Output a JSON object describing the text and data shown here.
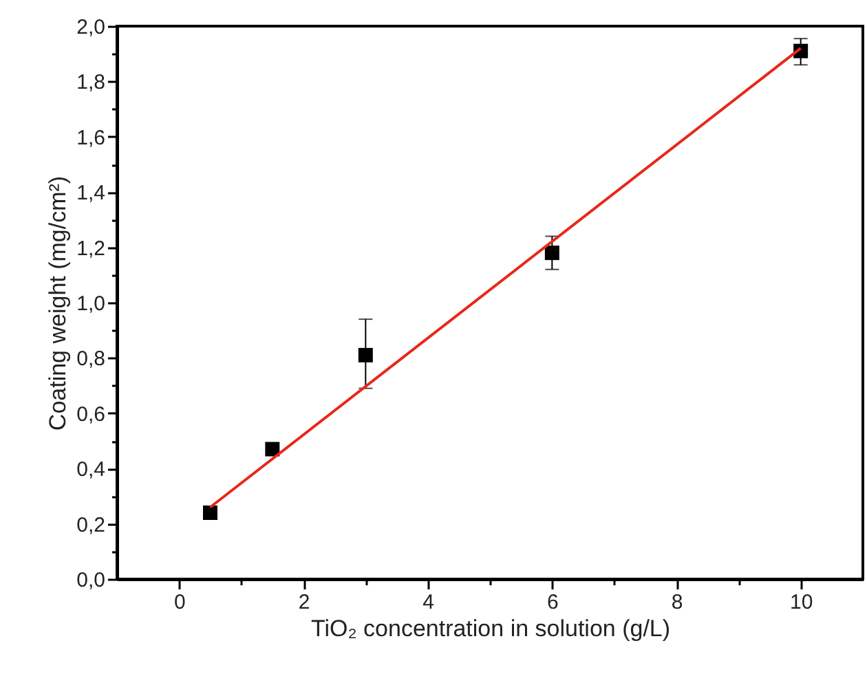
{
  "chart_data": {
    "type": "scatter",
    "xlabel": "TiO₂ concentration in solution (g/L)",
    "ylabel": "Coating weight (mg/cm²)",
    "xlim": [
      -1,
      11
    ],
    "ylim": [
      0,
      2
    ],
    "xticks": [
      0,
      {
        "value": 1,
        "label": null
      },
      2,
      {
        "value": 3,
        "label": null
      },
      4,
      {
        "value": 5,
        "label": null
      },
      6,
      {
        "value": 7,
        "label": null
      },
      8,
      {
        "value": 9,
        "label": null
      },
      10
    ],
    "yticks": [
      {
        "value": 0,
        "label": "0,0"
      },
      {
        "value": 0.1,
        "label": null
      },
      {
        "value": 0.2,
        "label": "0,2"
      },
      {
        "value": 0.3,
        "label": null
      },
      {
        "value": 0.4,
        "label": "0,4"
      },
      {
        "value": 0.5,
        "label": null
      },
      {
        "value": 0.6,
        "label": "0,6"
      },
      {
        "value": 0.7,
        "label": null
      },
      {
        "value": 0.8,
        "label": "0,8"
      },
      {
        "value": 0.9,
        "label": null
      },
      {
        "value": 1.0,
        "label": "1,0"
      },
      {
        "value": 1.1,
        "label": null
      },
      {
        "value": 1.2,
        "label": "1,2"
      },
      {
        "value": 1.3,
        "label": null
      },
      {
        "value": 1.4,
        "label": "1,4"
      },
      {
        "value": 1.5,
        "label": null
      },
      {
        "value": 1.6,
        "label": "1,6"
      },
      {
        "value": 1.7,
        "label": null
      },
      {
        "value": 1.8,
        "label": "1,8"
      },
      {
        "value": 1.9,
        "label": null
      },
      {
        "value": 2.0,
        "label": "2,0"
      }
    ],
    "series": [
      {
        "type": "scatter",
        "marker": "square",
        "color": "#000000",
        "x": [
          0.5,
          1.5,
          3,
          6,
          10
        ],
        "values": [
          0.24,
          0.47,
          0.81,
          1.18,
          1.91
        ],
        "errors": [
          null,
          null,
          [
            0.69,
            0.94
          ],
          [
            1.12,
            1.24
          ],
          [
            1.86,
            1.955
          ]
        ]
      },
      {
        "type": "line",
        "color": "#e8271b",
        "x": [
          0.5,
          10
        ],
        "values": [
          0.26,
          1.92
        ]
      }
    ]
  }
}
